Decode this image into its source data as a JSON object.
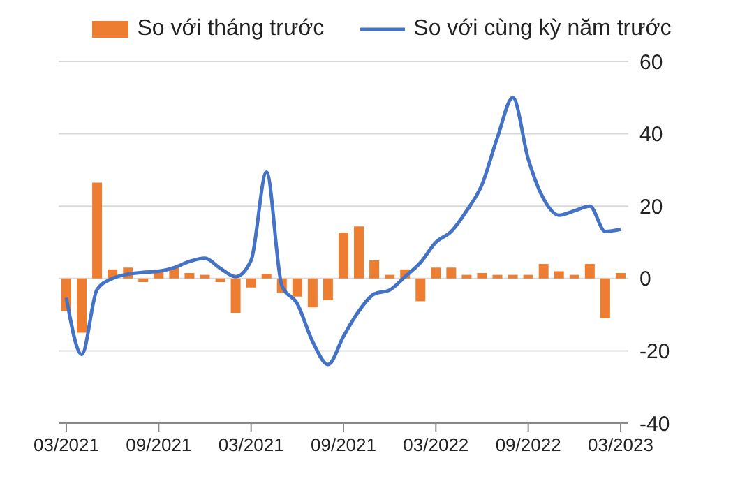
{
  "chart_data": {
    "type": "bar",
    "categories": [
      "03/2021",
      null,
      null,
      null,
      null,
      null,
      "09/2021",
      null,
      null,
      null,
      null,
      null,
      "03/2021",
      null,
      null,
      null,
      null,
      null,
      "09/2021",
      null,
      null,
      null,
      null,
      null,
      "03/2022",
      null,
      null,
      null,
      null,
      null,
      "09/2022",
      null,
      null,
      null,
      null,
      null,
      "03/2023"
    ],
    "series": [
      {
        "name": "So với tháng trước",
        "color": "#ed7d31",
        "values": [
          -9,
          -15,
          26.5,
          2.5,
          3,
          -1,
          2.5,
          3,
          1.5,
          1,
          -1,
          -9.5,
          -2.5,
          1.3,
          -4,
          -5,
          -8,
          -6,
          12.7,
          14.4,
          5,
          1,
          2.5,
          -6.3,
          3,
          3,
          1,
          1.5,
          1,
          1,
          1,
          4,
          2,
          1,
          4,
          -11,
          1.5
        ]
      },
      {
        "name": "So với cùng kỳ năm trước",
        "type": "line",
        "color": "#4472c4",
        "values": [
          -5.3,
          -21,
          -3,
          0,
          1.2,
          1.7,
          2,
          3,
          4.7,
          5.6,
          2.8,
          0.5,
          5,
          29.4,
          -2,
          -7,
          -17.5,
          -23.8,
          -16,
          -9,
          -4.3,
          -3.2,
          0.5,
          4.4,
          10,
          13,
          18.7,
          26,
          39,
          50,
          33,
          22,
          17.5,
          18.7,
          20,
          13,
          13.6
        ]
      }
    ],
    "ylim": [
      -40,
      60
    ],
    "yticks": [
      -40,
      -20,
      0,
      20,
      40,
      60
    ],
    "grid": "y",
    "legend": "top",
    "marker": "none",
    "line_style": "solid"
  }
}
